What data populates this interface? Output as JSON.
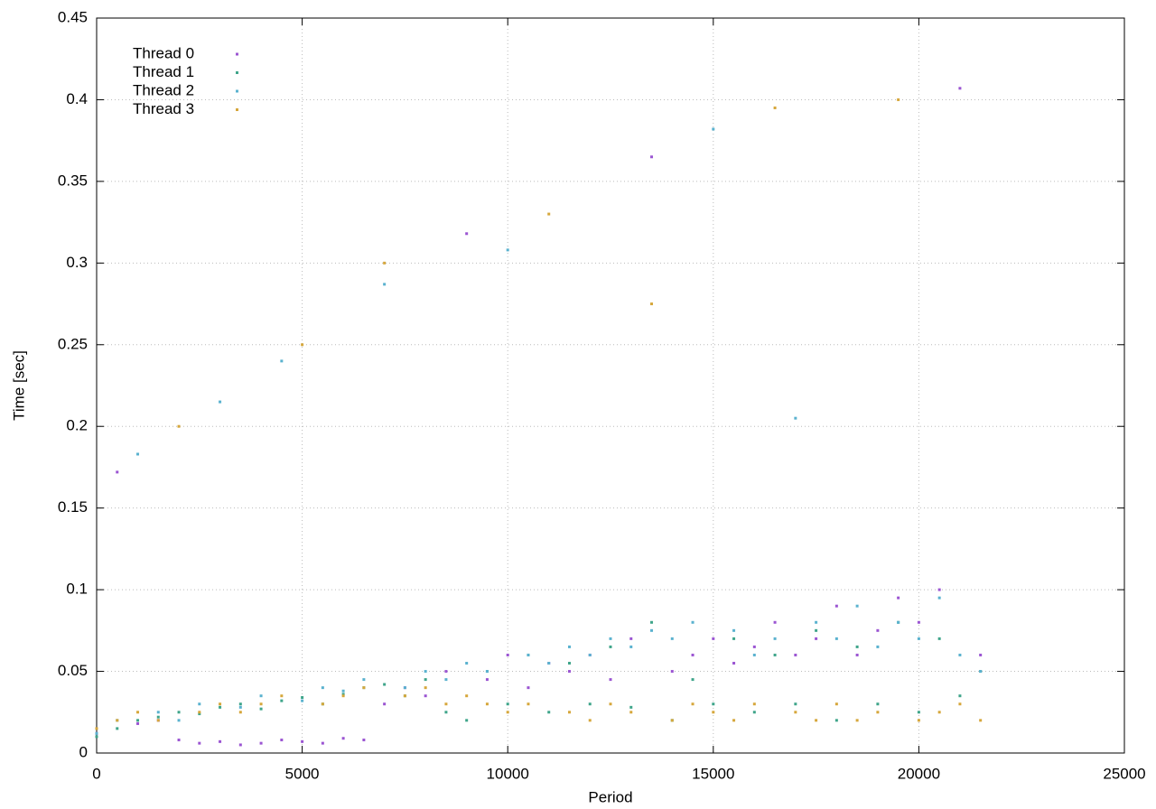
{
  "chart_data": {
    "type": "scatter",
    "x_label": "Period",
    "y_label": "Time [sec]",
    "x": [
      0,
      500,
      1000,
      1500,
      2000,
      2500,
      3000,
      3500,
      4000,
      4500,
      5000,
      5500,
      6000,
      6500,
      7000,
      7500,
      8000,
      8500,
      9000,
      9500,
      10000,
      10500,
      11000,
      11500,
      12000,
      12500,
      13000,
      13500,
      14000,
      14500,
      15000,
      15500,
      16000,
      16500,
      17000,
      17500,
      18000,
      18500,
      19000,
      19500,
      20000,
      20500,
      21000,
      21500
    ],
    "series": [
      {
        "name": "Thread 0",
        "color": "#9b55d2",
        "values": [
          0.012,
          0.172,
          0.018,
          0.02,
          0.008,
          0.006,
          0.007,
          0.005,
          0.006,
          0.008,
          0.007,
          0.006,
          0.009,
          0.008,
          0.03,
          0.04,
          0.035,
          0.05,
          0.318,
          0.045,
          0.06,
          0.04,
          0.055,
          0.05,
          0.06,
          0.045,
          0.07,
          0.365,
          0.05,
          0.06,
          0.07,
          0.055,
          0.065,
          0.08,
          0.06,
          0.07,
          0.09,
          0.06,
          0.075,
          0.095,
          0.08,
          0.1,
          0.407,
          0.06
        ]
      },
      {
        "name": "Thread 1",
        "color": "#3fa58a",
        "values": [
          0.01,
          0.015,
          0.02,
          0.022,
          0.025,
          0.024,
          0.028,
          0.03,
          0.027,
          0.032,
          0.034,
          0.03,
          0.036,
          0.04,
          0.042,
          0.035,
          0.045,
          0.025,
          0.02,
          0.05,
          0.03,
          0.06,
          0.025,
          0.055,
          0.03,
          0.065,
          0.028,
          0.08,
          0.02,
          0.045,
          0.03,
          0.07,
          0.025,
          0.06,
          0.03,
          0.075,
          0.02,
          0.065,
          0.03,
          0.08,
          0.025,
          0.07,
          0.035,
          0.05
        ]
      },
      {
        "name": "Thread 2",
        "color": "#5ab2cf",
        "values": [
          0.012,
          0.02,
          0.183,
          0.025,
          0.02,
          0.03,
          0.215,
          0.028,
          0.035,
          0.24,
          0.032,
          0.04,
          0.038,
          0.045,
          0.287,
          0.04,
          0.05,
          0.045,
          0.055,
          0.05,
          0.308,
          0.06,
          0.055,
          0.065,
          0.06,
          0.07,
          0.065,
          0.075,
          0.07,
          0.08,
          0.382,
          0.075,
          0.06,
          0.07,
          0.205,
          0.08,
          0.07,
          0.09,
          0.065,
          0.08,
          0.07,
          0.095,
          0.06,
          0.05
        ]
      },
      {
        "name": "Thread 3",
        "color": "#d6a73c",
        "values": [
          0.015,
          0.02,
          0.025,
          0.02,
          0.2,
          0.025,
          0.03,
          0.025,
          0.03,
          0.035,
          0.25,
          0.03,
          0.035,
          0.04,
          0.3,
          0.035,
          0.04,
          0.03,
          0.035,
          0.03,
          0.025,
          0.03,
          0.33,
          0.025,
          0.02,
          0.03,
          0.025,
          0.275,
          0.02,
          0.03,
          0.025,
          0.02,
          0.03,
          0.395,
          0.025,
          0.02,
          0.03,
          0.02,
          0.025,
          0.4,
          0.02,
          0.025,
          0.03,
          0.02
        ]
      }
    ],
    "xlim": [
      0,
      25000
    ],
    "xticks": [
      0,
      5000,
      10000,
      15000,
      20000,
      25000
    ],
    "ylim": [
      0,
      0.45
    ],
    "yticks": [
      0,
      0.05,
      0.1,
      0.15,
      0.2,
      0.25,
      0.3,
      0.35,
      0.4,
      0.45
    ],
    "grid": true,
    "legend": "top-left"
  }
}
